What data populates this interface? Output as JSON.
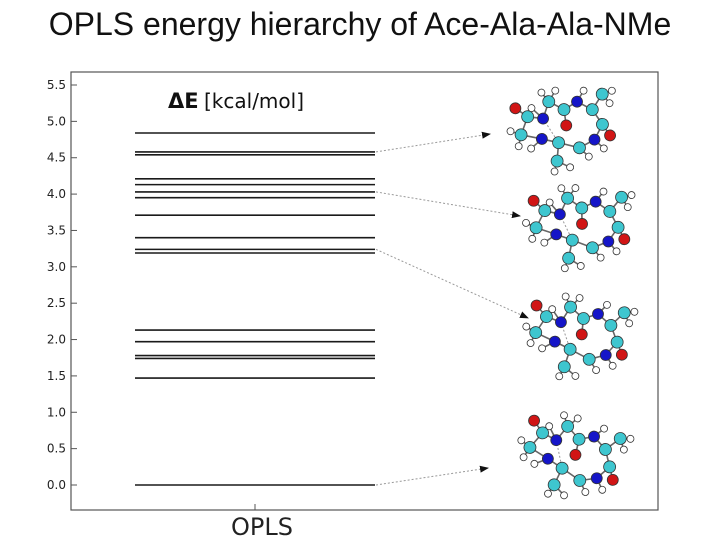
{
  "page": {
    "title": "OPLS energy hierarchy of Ace-Ala-Ala-NMe"
  },
  "chart_data": {
    "type": "energy-level-diagram",
    "title": "",
    "ylabel": "ΔE [kcal/mol]",
    "ylabel_symbol": "ΔE",
    "ylabel_unit": "[kcal/mol]",
    "xlabel": "OPLS",
    "ylim": [
      -0.2,
      5.6
    ],
    "yticks": [
      0.0,
      0.5,
      1.0,
      1.5,
      2.0,
      2.5,
      3.0,
      3.5,
      4.0,
      4.5,
      5.0,
      5.5
    ],
    "ytick_labels": [
      "0.0",
      "0.5",
      "1.0",
      "1.5",
      "2.0",
      "2.5",
      "3.0",
      "3.5",
      "4.0",
      "4.5",
      "5.0",
      "5.5"
    ],
    "grid": false,
    "levels": [
      0.0,
      1.47,
      1.74,
      1.78,
      1.97,
      2.13,
      3.19,
      3.24,
      3.4,
      3.71,
      3.95,
      4.03,
      4.13,
      4.21,
      4.54,
      4.58,
      4.84
    ],
    "annotated_levels": [
      4.58,
      4.03,
      3.24,
      0.0
    ],
    "structures": [
      "conformer-1",
      "conformer-2",
      "conformer-3",
      "conformer-4"
    ],
    "colors": {
      "level_line": "#1a1a1a",
      "carbon": "#3ec6cf",
      "nitrogen": "#1515c8",
      "oxygen": "#d11515",
      "hydrogen": "#ffffff",
      "arrow": "#9a9a9a"
    }
  }
}
